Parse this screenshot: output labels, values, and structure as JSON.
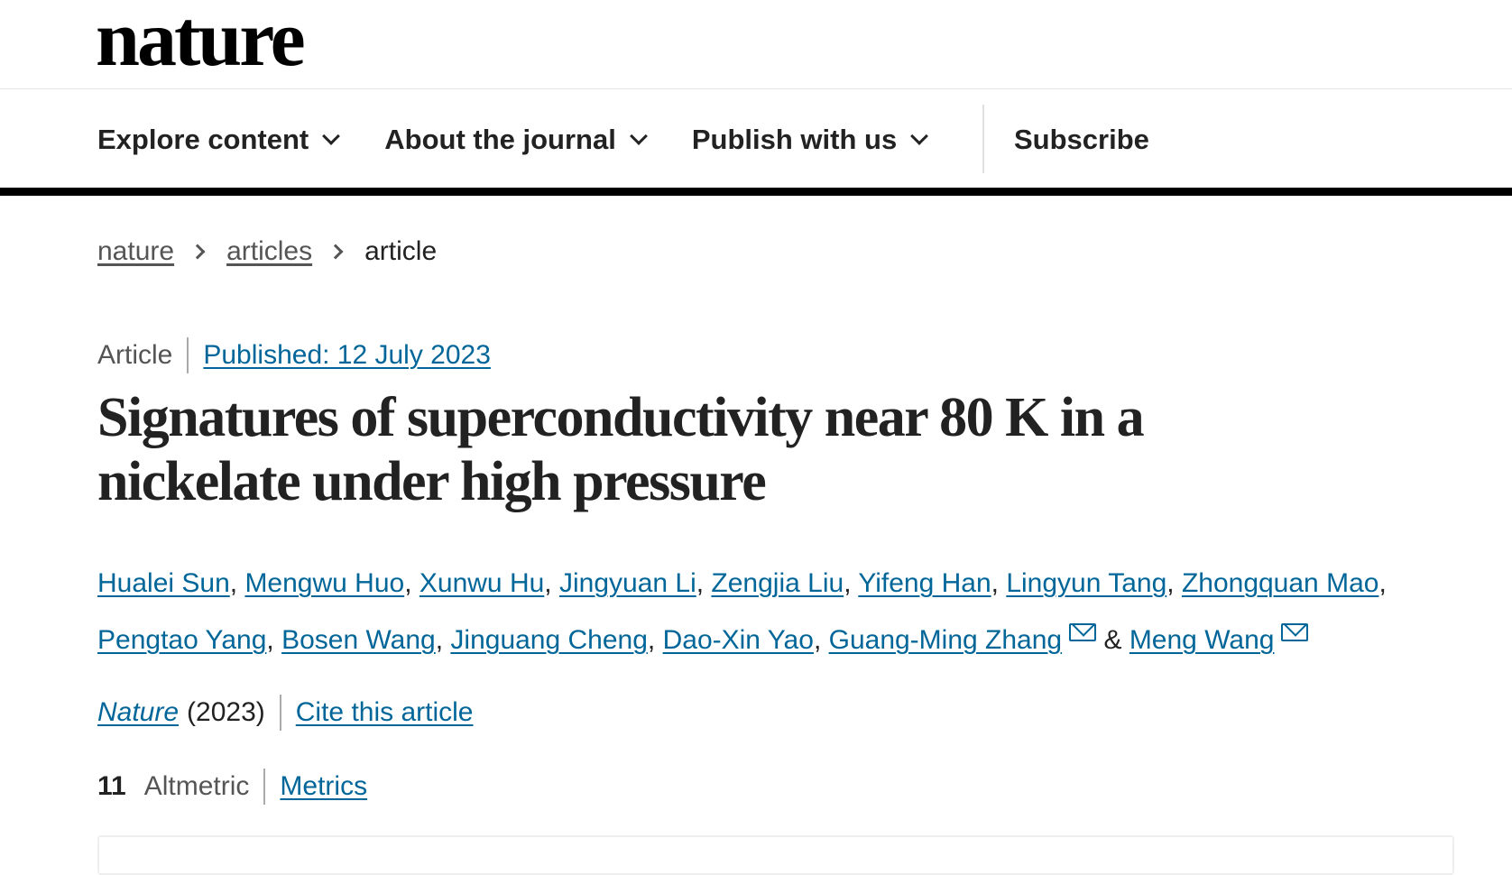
{
  "logo": "nature",
  "nav": {
    "items": [
      {
        "label": "Explore content"
      },
      {
        "label": "About the journal"
      },
      {
        "label": "Publish with us"
      }
    ],
    "subscribe": "Subscribe"
  },
  "breadcrumb": [
    "nature",
    "articles",
    "article"
  ],
  "meta": {
    "type": "Article",
    "published": "Published: 12 July 2023"
  },
  "title_line1": "Signatures of superconductivity near 80 K in a",
  "title_line2": "nickelate under high pressure",
  "authors": [
    "Hualei Sun",
    "Mengwu Huo",
    "Xunwu Hu",
    "Jingyuan Li",
    "Zengjia Liu",
    "Yifeng Han",
    "Lingyun Tang",
    "Zhongquan Mao",
    "Pengtao Yang",
    "Bosen Wang",
    "Jinguang Cheng",
    "Dao-Xin Yao",
    "Guang-Ming Zhang",
    "Meng Wang"
  ],
  "amp": "&",
  "journal": {
    "name": "Nature",
    "year": "(2023)",
    "cite": "Cite this article"
  },
  "altmetric": {
    "count": "11",
    "label": "Altmetric",
    "metrics": "Metrics"
  },
  "colors": {
    "link": "#006699",
    "text": "#222222"
  }
}
